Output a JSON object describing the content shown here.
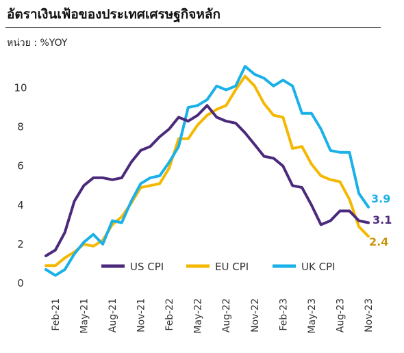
{
  "title": "อัตราเงินเฟ้อของประเทศเศรษฐกิจหลัก",
  "unit_label": "หน่วย : %YOY",
  "colors": {
    "us": "#4b2a7b",
    "eu": "#f5b800",
    "uk": "#1ab0e8",
    "eu_label": "#c9960a"
  },
  "chart_data": {
    "type": "line",
    "title": "อัตราเงินเฟ้อของประเทศเศรษฐกิจหลัก",
    "ylabel": "หน่วย : %YOY",
    "ylim": [
      0,
      11
    ],
    "yticks": [
      0,
      2,
      4,
      6,
      8,
      10
    ],
    "x": [
      "Jan-21",
      "Feb-21",
      "Mar-21",
      "Apr-21",
      "May-21",
      "Jun-21",
      "Jul-21",
      "Aug-21",
      "Sep-21",
      "Oct-21",
      "Nov-21",
      "Dec-21",
      "Jan-22",
      "Feb-22",
      "Mar-22",
      "Apr-22",
      "May-22",
      "Jun-22",
      "Jul-22",
      "Aug-22",
      "Sep-22",
      "Oct-22",
      "Nov-22",
      "Dec-22",
      "Jan-23",
      "Feb-23",
      "Mar-23",
      "Apr-23",
      "May-23",
      "Jun-23",
      "Jul-23",
      "Aug-23",
      "Sep-23",
      "Oct-23",
      "Nov-23"
    ],
    "xtick_labels": [
      "Feb-21",
      "May-21",
      "Aug-21",
      "Nov-21",
      "Feb-22",
      "May-22",
      "Aug-22",
      "Nov-22",
      "Feb-23",
      "May-23",
      "Aug-23",
      "Nov-23"
    ],
    "xtick_index": [
      1,
      4,
      7,
      10,
      13,
      16,
      19,
      22,
      25,
      28,
      31,
      34
    ],
    "series": [
      {
        "key": "us",
        "name": "US CPI",
        "end_label": "3.1",
        "values": [
          1.4,
          1.7,
          2.6,
          4.2,
          5.0,
          5.4,
          5.4,
          5.3,
          5.4,
          6.2,
          6.8,
          7.0,
          7.5,
          7.9,
          8.5,
          8.3,
          8.6,
          9.1,
          8.5,
          8.3,
          8.2,
          7.7,
          7.1,
          6.5,
          6.4,
          6.0,
          5.0,
          4.9,
          4.0,
          3.0,
          3.2,
          3.7,
          3.7,
          3.2,
          3.1
        ]
      },
      {
        "key": "eu",
        "name": "EU CPI",
        "end_label": "2.4",
        "values": [
          0.9,
          0.9,
          1.3,
          1.6,
          2.0,
          1.9,
          2.2,
          3.0,
          3.4,
          4.1,
          4.9,
          5.0,
          5.1,
          5.9,
          7.4,
          7.4,
          8.1,
          8.6,
          8.9,
          9.1,
          9.9,
          10.6,
          10.1,
          9.2,
          8.6,
          8.5,
          6.9,
          7.0,
          6.1,
          5.5,
          5.3,
          5.2,
          4.3,
          2.9,
          2.4
        ]
      },
      {
        "key": "uk",
        "name": "UK CPI",
        "end_label": "3.9",
        "values": [
          0.7,
          0.4,
          0.7,
          1.5,
          2.1,
          2.5,
          2.0,
          3.2,
          3.1,
          4.2,
          5.1,
          5.4,
          5.5,
          6.2,
          7.0,
          9.0,
          9.1,
          9.4,
          10.1,
          9.9,
          10.1,
          11.1,
          10.7,
          10.5,
          10.1,
          10.4,
          10.1,
          8.7,
          8.7,
          7.9,
          6.8,
          6.7,
          6.7,
          4.6,
          3.9
        ]
      }
    ],
    "legend_placement": "bottom-center",
    "grid": false
  }
}
